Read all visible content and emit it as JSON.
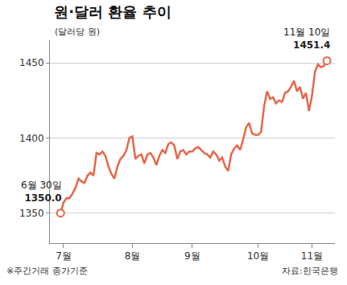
{
  "chart_data": {
    "type": "line",
    "title": "원·달러 환율 추이",
    "y_label": "(달러당 원)",
    "note": "※주간거래 종가기준",
    "source": "자료:한국은행",
    "color": "#e8664a",
    "marker": "circle",
    "line_style": "solid",
    "grid": true,
    "categories": [
      null,
      "7월",
      null,
      null,
      null,
      null,
      null,
      null,
      null,
      null,
      null,
      null,
      null,
      null,
      null,
      null,
      null,
      null,
      null,
      null,
      null,
      null,
      null,
      null,
      "8월",
      null,
      null,
      null,
      null,
      null,
      null,
      null,
      null,
      null,
      null,
      null,
      null,
      null,
      null,
      null,
      null,
      null,
      null,
      null,
      "9월",
      null,
      null,
      null,
      null,
      null,
      null,
      null,
      null,
      null,
      null,
      null,
      null,
      null,
      null,
      null,
      null,
      null,
      null,
      null,
      null,
      null,
      "10월",
      null,
      null,
      null,
      null,
      null,
      null,
      null,
      null,
      null,
      null,
      null,
      null,
      null,
      null,
      null,
      null,
      null,
      "11월",
      null,
      null,
      null,
      null,
      null
    ],
    "values": [
      1350.0,
      1357,
      1360,
      1360,
      1363,
      1367,
      1373,
      1371,
      1370,
      1375,
      1377,
      1375,
      1390,
      1389,
      1391,
      1388,
      1381,
      1376,
      1373,
      1381,
      1386,
      1388,
      1392,
      1400,
      1401,
      1386,
      1388,
      1389,
      1383,
      1389,
      1390,
      1387,
      1382,
      1388,
      1392,
      1390,
      1396,
      1397,
      1395,
      1386,
      1391,
      1392,
      1389,
      1391,
      1391,
      1393,
      1394,
      1392,
      1390,
      1389,
      1387,
      1391,
      1389,
      1385,
      1387,
      1381,
      1378,
      1389,
      1393,
      1395,
      1392,
      1399,
      1407,
      1410,
      1403,
      1402,
      1402,
      1404,
      1421,
      1431,
      1426,
      1427,
      1423,
      1425,
      1424,
      1430,
      1431,
      1434,
      1438,
      1431,
      1434,
      1426,
      1430,
      1418,
      1428,
      1444,
      1449,
      1447,
      1448,
      1451.4
    ],
    "annotations": [
      {
        "index": 0,
        "text": "6월 30일",
        "value_label": "1350.0"
      },
      {
        "index": 89,
        "text": "11월 10일",
        "value_label": "1451.4"
      }
    ],
    "ylim": [
      1330,
      1465
    ],
    "yticks": [
      1350,
      1400,
      1450
    ]
  }
}
